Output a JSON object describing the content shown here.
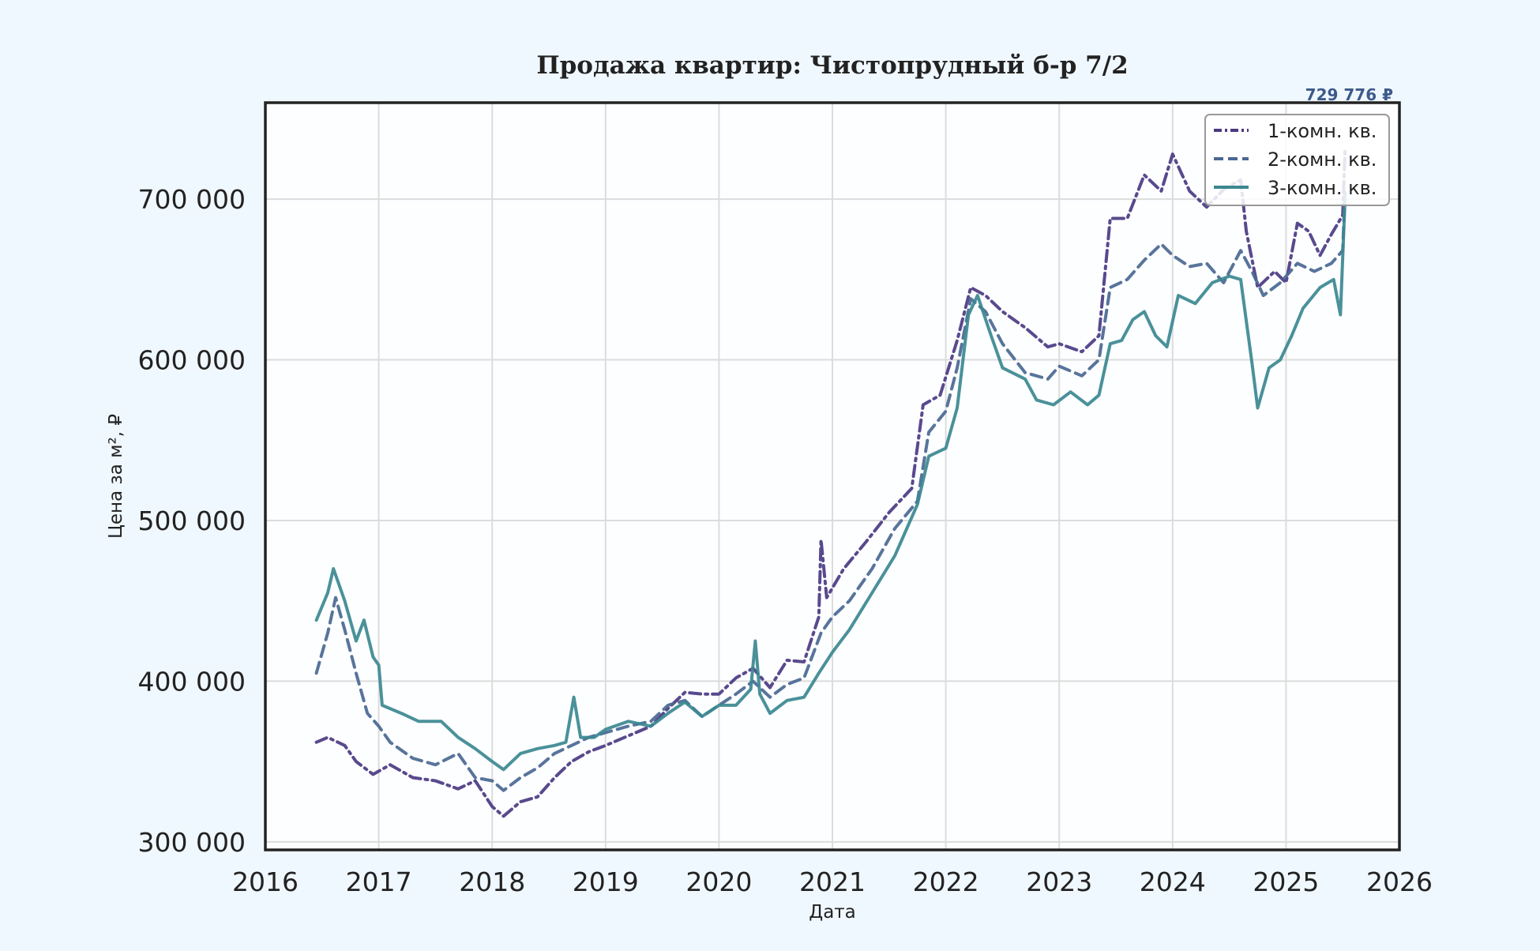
{
  "chart_data": {
    "type": "line",
    "title": "Продажа квартир: Чистопрудный б-р 7/2",
    "xlabel": "Дата",
    "ylabel": "Цена за м², ₽",
    "xlim": [
      2016,
      2026
    ],
    "ylim": [
      295000,
      760000
    ],
    "x_ticks": [
      "2016",
      "2017",
      "2018",
      "2019",
      "2020",
      "2021",
      "2022",
      "2023",
      "2024",
      "2025",
      "2026"
    ],
    "y_ticks": [
      "300 000",
      "400 000",
      "500 000",
      "600 000",
      "700 000"
    ],
    "grid": true,
    "legend_position": "top-right",
    "top_annotation": "729 776 ₽",
    "series": [
      {
        "name": "1-комн. кв.",
        "color": "#4b3a83",
        "style": "dashdot",
        "points": [
          [
            2016.45,
            362000
          ],
          [
            2016.55,
            365000
          ],
          [
            2016.7,
            360000
          ],
          [
            2016.8,
            350000
          ],
          [
            2016.95,
            342000
          ],
          [
            2017.1,
            348000
          ],
          [
            2017.3,
            340000
          ],
          [
            2017.5,
            338000
          ],
          [
            2017.7,
            333000
          ],
          [
            2017.85,
            338000
          ],
          [
            2018.0,
            322000
          ],
          [
            2018.1,
            316000
          ],
          [
            2018.25,
            325000
          ],
          [
            2018.4,
            328000
          ],
          [
            2018.55,
            340000
          ],
          [
            2018.7,
            350000
          ],
          [
            2018.85,
            356000
          ],
          [
            2019.0,
            360000
          ],
          [
            2019.2,
            366000
          ],
          [
            2019.4,
            372000
          ],
          [
            2019.55,
            383000
          ],
          [
            2019.7,
            393000
          ],
          [
            2019.85,
            392000
          ],
          [
            2020.0,
            392000
          ],
          [
            2020.15,
            402000
          ],
          [
            2020.3,
            408000
          ],
          [
            2020.45,
            396000
          ],
          [
            2020.6,
            413000
          ],
          [
            2020.75,
            412000
          ],
          [
            2020.88,
            440000
          ],
          [
            2020.9,
            488000
          ],
          [
            2020.95,
            452000
          ],
          [
            2021.1,
            470000
          ],
          [
            2021.3,
            487000
          ],
          [
            2021.5,
            505000
          ],
          [
            2021.7,
            520000
          ],
          [
            2021.8,
            572000
          ],
          [
            2021.95,
            578000
          ],
          [
            2022.1,
            612000
          ],
          [
            2022.22,
            645000
          ],
          [
            2022.35,
            640000
          ],
          [
            2022.5,
            630000
          ],
          [
            2022.7,
            620000
          ],
          [
            2022.9,
            608000
          ],
          [
            2023.0,
            610000
          ],
          [
            2023.2,
            605000
          ],
          [
            2023.35,
            615000
          ],
          [
            2023.45,
            688000
          ],
          [
            2023.6,
            688000
          ],
          [
            2023.75,
            715000
          ],
          [
            2023.9,
            705000
          ],
          [
            2024.0,
            728000
          ],
          [
            2024.15,
            705000
          ],
          [
            2024.3,
            695000
          ],
          [
            2024.45,
            706000
          ],
          [
            2024.6,
            712000
          ],
          [
            2024.65,
            680000
          ],
          [
            2024.75,
            645000
          ],
          [
            2024.9,
            655000
          ],
          [
            2025.0,
            648000
          ],
          [
            2025.1,
            685000
          ],
          [
            2025.2,
            680000
          ],
          [
            2025.3,
            665000
          ],
          [
            2025.4,
            678000
          ],
          [
            2025.5,
            690000
          ],
          [
            2025.52,
            729776
          ]
        ]
      },
      {
        "name": "2-комн. кв.",
        "color": "#4a6892",
        "style": "dashed",
        "points": [
          [
            2016.45,
            405000
          ],
          [
            2016.55,
            430000
          ],
          [
            2016.62,
            452000
          ],
          [
            2016.7,
            432000
          ],
          [
            2016.8,
            405000
          ],
          [
            2016.9,
            380000
          ],
          [
            2017.0,
            372000
          ],
          [
            2017.1,
            362000
          ],
          [
            2017.3,
            352000
          ],
          [
            2017.5,
            348000
          ],
          [
            2017.7,
            355000
          ],
          [
            2017.85,
            340000
          ],
          [
            2018.0,
            338000
          ],
          [
            2018.1,
            332000
          ],
          [
            2018.25,
            340000
          ],
          [
            2018.4,
            346000
          ],
          [
            2018.55,
            355000
          ],
          [
            2018.7,
            360000
          ],
          [
            2018.85,
            365000
          ],
          [
            2019.0,
            368000
          ],
          [
            2019.2,
            372000
          ],
          [
            2019.4,
            375000
          ],
          [
            2019.55,
            385000
          ],
          [
            2019.7,
            388000
          ],
          [
            2019.85,
            378000
          ],
          [
            2020.0,
            385000
          ],
          [
            2020.15,
            392000
          ],
          [
            2020.3,
            400000
          ],
          [
            2020.45,
            390000
          ],
          [
            2020.6,
            398000
          ],
          [
            2020.75,
            402000
          ],
          [
            2020.9,
            430000
          ],
          [
            2021.0,
            440000
          ],
          [
            2021.15,
            450000
          ],
          [
            2021.35,
            470000
          ],
          [
            2021.55,
            495000
          ],
          [
            2021.75,
            512000
          ],
          [
            2021.85,
            555000
          ],
          [
            2022.0,
            568000
          ],
          [
            2022.1,
            595000
          ],
          [
            2022.22,
            638000
          ],
          [
            2022.35,
            630000
          ],
          [
            2022.5,
            610000
          ],
          [
            2022.7,
            592000
          ],
          [
            2022.9,
            588000
          ],
          [
            2023.0,
            596000
          ],
          [
            2023.2,
            590000
          ],
          [
            2023.35,
            600000
          ],
          [
            2023.45,
            645000
          ],
          [
            2023.6,
            650000
          ],
          [
            2023.75,
            662000
          ],
          [
            2023.9,
            672000
          ],
          [
            2024.0,
            665000
          ],
          [
            2024.15,
            658000
          ],
          [
            2024.3,
            660000
          ],
          [
            2024.45,
            648000
          ],
          [
            2024.6,
            668000
          ],
          [
            2024.7,
            655000
          ],
          [
            2024.8,
            640000
          ],
          [
            2024.95,
            648000
          ],
          [
            2025.1,
            660000
          ],
          [
            2025.25,
            655000
          ],
          [
            2025.4,
            660000
          ],
          [
            2025.5,
            668000
          ],
          [
            2025.52,
            705000
          ]
        ]
      },
      {
        "name": "3-комн. кв.",
        "color": "#3b8891",
        "style": "solid",
        "points": [
          [
            2016.45,
            438000
          ],
          [
            2016.55,
            455000
          ],
          [
            2016.6,
            470000
          ],
          [
            2016.7,
            450000
          ],
          [
            2016.8,
            425000
          ],
          [
            2016.87,
            438000
          ],
          [
            2016.95,
            415000
          ],
          [
            2017.0,
            410000
          ],
          [
            2017.03,
            385000
          ],
          [
            2017.2,
            380000
          ],
          [
            2017.35,
            375000
          ],
          [
            2017.55,
            375000
          ],
          [
            2017.7,
            365000
          ],
          [
            2017.85,
            358000
          ],
          [
            2018.0,
            350000
          ],
          [
            2018.1,
            345000
          ],
          [
            2018.25,
            355000
          ],
          [
            2018.4,
            358000
          ],
          [
            2018.55,
            360000
          ],
          [
            2018.65,
            362000
          ],
          [
            2018.72,
            390000
          ],
          [
            2018.78,
            365000
          ],
          [
            2018.9,
            365000
          ],
          [
            2019.0,
            370000
          ],
          [
            2019.2,
            375000
          ],
          [
            2019.4,
            372000
          ],
          [
            2019.55,
            380000
          ],
          [
            2019.7,
            387000
          ],
          [
            2019.85,
            378000
          ],
          [
            2020.0,
            385000
          ],
          [
            2020.15,
            385000
          ],
          [
            2020.28,
            395000
          ],
          [
            2020.32,
            425000
          ],
          [
            2020.36,
            392000
          ],
          [
            2020.45,
            380000
          ],
          [
            2020.6,
            388000
          ],
          [
            2020.75,
            390000
          ],
          [
            2020.88,
            405000
          ],
          [
            2021.0,
            418000
          ],
          [
            2021.15,
            432000
          ],
          [
            2021.35,
            455000
          ],
          [
            2021.55,
            478000
          ],
          [
            2021.75,
            510000
          ],
          [
            2021.85,
            540000
          ],
          [
            2022.0,
            545000
          ],
          [
            2022.1,
            570000
          ],
          [
            2022.2,
            628000
          ],
          [
            2022.28,
            640000
          ],
          [
            2022.4,
            615000
          ],
          [
            2022.5,
            595000
          ],
          [
            2022.7,
            588000
          ],
          [
            2022.8,
            575000
          ],
          [
            2022.95,
            572000
          ],
          [
            2023.1,
            580000
          ],
          [
            2023.25,
            572000
          ],
          [
            2023.35,
            578000
          ],
          [
            2023.45,
            610000
          ],
          [
            2023.55,
            612000
          ],
          [
            2023.65,
            625000
          ],
          [
            2023.75,
            630000
          ],
          [
            2023.85,
            615000
          ],
          [
            2023.95,
            608000
          ],
          [
            2024.05,
            640000
          ],
          [
            2024.2,
            635000
          ],
          [
            2024.35,
            648000
          ],
          [
            2024.5,
            652000
          ],
          [
            2024.6,
            650000
          ],
          [
            2024.7,
            598000
          ],
          [
            2024.75,
            570000
          ],
          [
            2024.85,
            595000
          ],
          [
            2024.95,
            600000
          ],
          [
            2025.05,
            615000
          ],
          [
            2025.15,
            632000
          ],
          [
            2025.3,
            645000
          ],
          [
            2025.42,
            650000
          ],
          [
            2025.48,
            628000
          ],
          [
            2025.52,
            700000
          ]
        ]
      }
    ]
  }
}
